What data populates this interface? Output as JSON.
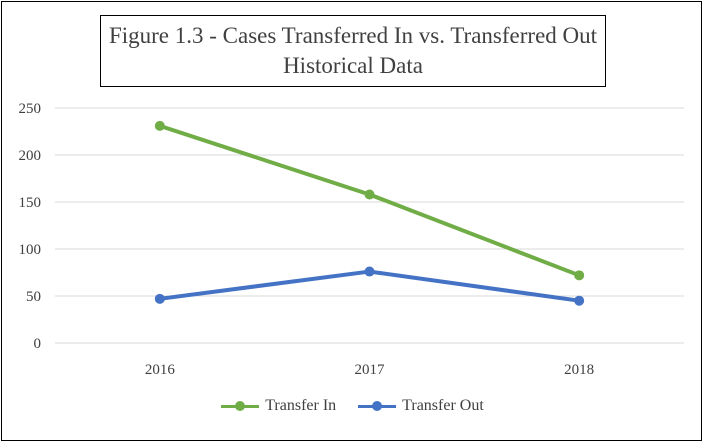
{
  "chart_data": {
    "type": "line",
    "title": "Figure 1.3 - Cases Transferred In vs. Transferred Out",
    "subtitle": "Historical Data",
    "categories": [
      "2016",
      "2017",
      "2018"
    ],
    "series": [
      {
        "name": "Transfer In",
        "values": [
          231,
          158,
          72
        ],
        "color": "#70ad47"
      },
      {
        "name": "Transfer Out",
        "values": [
          47,
          76,
          45
        ],
        "color": "#4472c4"
      }
    ],
    "ylim": [
      0,
      250
    ],
    "yticks": [
      0,
      50,
      100,
      150,
      200,
      250
    ],
    "grid": true,
    "legend": "bottom"
  }
}
